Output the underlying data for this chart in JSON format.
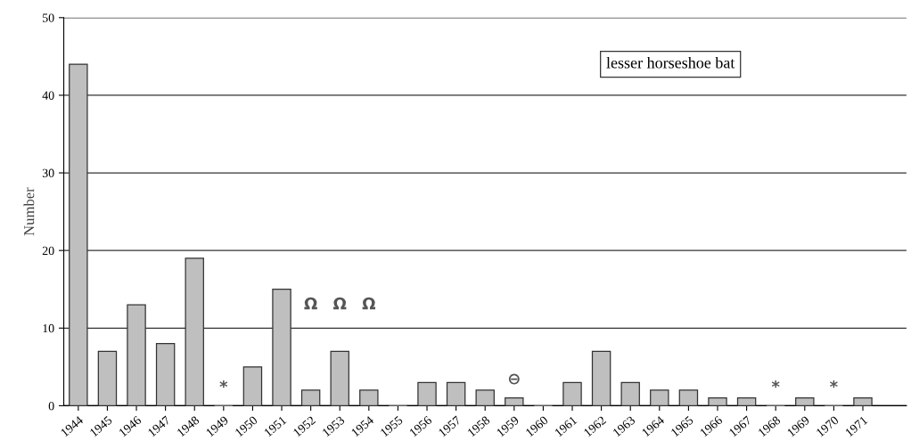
{
  "chart_data": {
    "type": "bar",
    "ylabel": "Number",
    "categories": [
      "1944",
      "1945",
      "1946",
      "1947",
      "1948",
      "1949",
      "1950",
      "1951",
      "1952",
      "1953",
      "1954",
      "1955",
      "1956",
      "1957",
      "1958",
      "1959",
      "1960",
      "1961",
      "1962",
      "1963",
      "1964",
      "1965",
      "1966",
      "1967",
      "1968",
      "1969",
      "1970",
      "1971"
    ],
    "values": [
      44,
      7,
      13,
      8,
      19,
      0,
      5,
      15,
      2,
      7,
      2,
      0,
      3,
      3,
      2,
      1,
      0,
      3,
      7,
      3,
      2,
      2,
      1,
      1,
      0,
      1,
      0,
      1
    ],
    "color": "#bfbfbf",
    "ylim": [
      0,
      50
    ],
    "yticks": [
      0,
      10,
      20,
      30,
      40,
      50
    ],
    "grid": "y",
    "annotations": [
      "lesser horseshoe bat",
      "*",
      "Ω",
      "Ω",
      "Ω",
      "⊖",
      "*",
      "*"
    ]
  }
}
